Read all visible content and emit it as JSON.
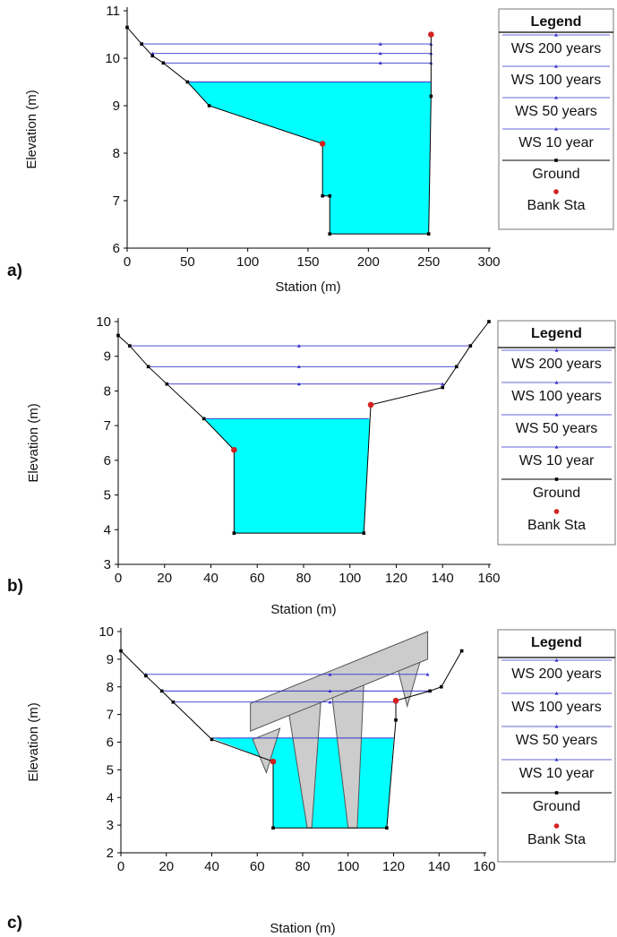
{
  "colors": {
    "water": "#00ffff",
    "ws_line": "#3333cc",
    "ground": "#000000",
    "bank": "#d32020",
    "bridge_fill": "#cccccc",
    "bridge_stroke": "#555555"
  },
  "chart_data": [
    {
      "panel_label": "a)",
      "type": "line",
      "xlabel": "Station (m)",
      "ylabel": "Elevation (m)",
      "xlim": [
        0,
        300
      ],
      "ylim": [
        6,
        11
      ],
      "xticks": [
        0,
        50,
        100,
        150,
        200,
        250,
        300
      ],
      "yticks": [
        6,
        7,
        8,
        9,
        10,
        11
      ],
      "grid": false,
      "legend_placement": "right",
      "legend": {
        "title": "Legend",
        "entries": [
          "WS 200 years",
          "WS 100 years",
          "WS 50 years",
          "WS 10 year",
          "Ground",
          "Bank Sta"
        ]
      },
      "ground": {
        "x": [
          0,
          12,
          21,
          30,
          50,
          68,
          162,
          162,
          168,
          168,
          250,
          252,
          252
        ],
        "y": [
          10.65,
          10.3,
          10.05,
          9.9,
          9.5,
          9.0,
          8.2,
          7.1,
          7.1,
          6.3,
          6.3,
          9.2,
          10.5
        ]
      },
      "bank_stations": [
        {
          "x": 162,
          "y": 8.2
        },
        {
          "x": 252,
          "y": 10.5
        }
      ],
      "water_surface": [
        {
          "name": "WS 200 years",
          "elevation": 10.3,
          "x_start": 12,
          "x_end": 252,
          "marker_x": 210
        },
        {
          "name": "WS 100 years",
          "elevation": 10.1,
          "x_start": 21,
          "x_end": 252,
          "marker_x": 210
        },
        {
          "name": "WS 50 years",
          "elevation": 9.9,
          "x_start": 30,
          "x_end": 252,
          "marker_x": 210
        },
        {
          "name": "WS 10 year",
          "elevation": 9.5,
          "x_start": 50,
          "x_end": 252,
          "marker_x": null
        }
      ],
      "fill_elevation": 9.5,
      "bridge": null
    },
    {
      "panel_label": "b)",
      "type": "line",
      "xlabel": "Station (m)",
      "ylabel": "Elevation (m)",
      "xlim": [
        0,
        160
      ],
      "ylim": [
        3,
        10
      ],
      "xticks": [
        0,
        20,
        40,
        60,
        80,
        100,
        120,
        140,
        160
      ],
      "yticks": [
        3,
        4,
        5,
        6,
        7,
        8,
        9,
        10
      ],
      "grid": false,
      "legend_placement": "right",
      "legend": {
        "title": "Legend",
        "entries": [
          "WS 200 years",
          "WS 100 years",
          "WS 50 years",
          "WS 10 year",
          "Ground",
          "Bank Sta"
        ]
      },
      "ground": {
        "x": [
          0,
          5,
          13,
          21,
          37,
          50,
          50,
          106,
          109,
          140,
          146,
          152,
          160
        ],
        "y": [
          9.6,
          9.3,
          8.7,
          8.2,
          7.2,
          6.3,
          3.9,
          3.9,
          7.6,
          8.1,
          8.7,
          9.3,
          10.0
        ]
      },
      "bank_stations": [
        {
          "x": 50,
          "y": 6.3
        },
        {
          "x": 109,
          "y": 7.6
        }
      ],
      "water_surface": [
        {
          "name": "WS 200 years",
          "elevation": 9.3,
          "x_start": 5,
          "x_end": 152,
          "marker_x": 78
        },
        {
          "name": "WS 100 years",
          "elevation": 8.7,
          "x_start": 13,
          "x_end": 146,
          "marker_x": 78
        },
        {
          "name": "WS 50 years",
          "elevation": 8.2,
          "x_start": 21,
          "x_end": 140,
          "marker_x": 78
        },
        {
          "name": "WS 10 year",
          "elevation": 7.2,
          "x_start": 37,
          "x_end": 108,
          "marker_x": null
        }
      ],
      "fill_elevation": 7.2,
      "bridge": null
    },
    {
      "panel_label": "c)",
      "type": "line",
      "xlabel": "Station (m)",
      "ylabel": "Elevation (m)",
      "xlim": [
        0,
        160
      ],
      "ylim": [
        2,
        10
      ],
      "xticks": [
        0,
        20,
        40,
        60,
        80,
        100,
        120,
        140,
        160
      ],
      "yticks": [
        2,
        3,
        4,
        5,
        6,
        7,
        8,
        9,
        10
      ],
      "grid": false,
      "legend_placement": "right",
      "legend": {
        "title": "Legend",
        "entries": [
          "WS 200 years",
          "WS 100 years",
          "WS 50 years",
          "WS 10 year",
          "Ground",
          "Bank Sta"
        ]
      },
      "ground": {
        "x": [
          0,
          11,
          18,
          23,
          40,
          67,
          67,
          117,
          121,
          121,
          136,
          141,
          150
        ],
        "y": [
          9.3,
          8.4,
          7.85,
          7.45,
          6.1,
          5.3,
          2.9,
          2.9,
          6.8,
          7.5,
          7.85,
          8.0,
          9.3
        ]
      },
      "bank_stations": [
        {
          "x": 67,
          "y": 5.3
        },
        {
          "x": 121,
          "y": 7.5
        }
      ],
      "water_surface": [
        {
          "name": "WS 200 years",
          "elevation": 8.45,
          "x_start": 11,
          "x_end": 135,
          "marker_x": 92
        },
        {
          "name": "WS 100 years",
          "elevation": 7.85,
          "x_start": 18,
          "x_end": 136,
          "marker_x": 92
        },
        {
          "name": "WS 50 years",
          "elevation": 7.45,
          "x_start": 23,
          "x_end": 121,
          "marker_x": 92
        },
        {
          "name": "WS 10 year",
          "elevation": 6.15,
          "x_start": 40,
          "x_end": 120,
          "marker_x": null
        }
      ],
      "fill_elevation": 6.15,
      "fill_x_start": 40,
      "fill_x_end": 120,
      "bridge": {
        "deck": [
          [
            57,
            6.4
          ],
          [
            57,
            7.4
          ],
          [
            135,
            10.0
          ],
          [
            135,
            9.0
          ]
        ],
        "piers": [
          [
            [
              58,
              6.1
            ],
            [
              70,
              6.5
            ],
            [
              64,
              4.9
            ]
          ],
          [
            [
              74,
              7.0
            ],
            [
              88,
              7.5
            ],
            [
              84,
              2.9
            ],
            [
              82,
              2.9
            ]
          ],
          [
            [
              93,
              7.6
            ],
            [
              107,
              8.3
            ],
            [
              104,
              2.9
            ],
            [
              100,
              2.9
            ]
          ],
          [
            [
              122,
              8.6
            ],
            [
              132,
              9.0
            ],
            [
              126,
              7.3
            ]
          ]
        ]
      }
    }
  ]
}
